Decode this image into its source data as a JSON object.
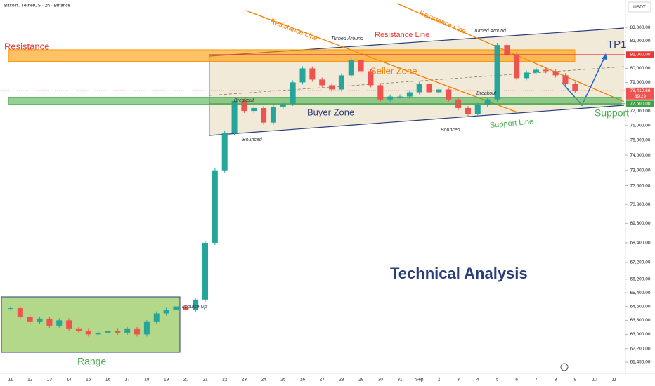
{
  "chart_data": {
    "type": "candlestick",
    "title": "Bitcoin / TetherUS · 2h · Binance",
    "currency": "USDT",
    "log_scale": true,
    "ylim": [
      60830,
      85070
    ],
    "yticks": [
      {
        "value": 83000,
        "label": "83,000.00"
      },
      {
        "value": 82000,
        "label": "82,000.00"
      },
      {
        "value": 80000,
        "label": "80,000.00"
      },
      {
        "value": 79000,
        "label": "79,000.00"
      },
      {
        "value": 77000,
        "label": "77,000.00"
      },
      {
        "value": 76000,
        "label": "76,000.00"
      },
      {
        "value": 75000,
        "label": "75,000.00"
      },
      {
        "value": 74000,
        "label": "74,000.00"
      },
      {
        "value": 73000,
        "label": "73,000.00"
      },
      {
        "value": 72000,
        "label": "72,000.00"
      },
      {
        "value": 70800,
        "label": "70,800.00"
      },
      {
        "value": 69600,
        "label": "69,600.00"
      },
      {
        "value": 68400,
        "label": "68,400.00"
      },
      {
        "value": 67200,
        "label": "67,200.00"
      },
      {
        "value": 66200,
        "label": "66,200.00"
      },
      {
        "value": 65400,
        "label": "65,400.00"
      },
      {
        "value": 64600,
        "label": "64,600.00"
      },
      {
        "value": 63800,
        "label": "63,800.00"
      },
      {
        "value": 63000,
        "label": "63,000.00"
      },
      {
        "value": 62200,
        "label": "62,200.00"
      },
      {
        "value": 61450,
        "label": "61,450.00"
      }
    ],
    "price_labels": [
      {
        "value": 81000,
        "label": "81,000.00",
        "color": "#e53935"
      },
      {
        "value": 78410.66,
        "label": "78,410.66",
        "color": "#ef5350"
      },
      {
        "value": 77500,
        "label": "77,500.00",
        "color": "#43a047"
      }
    ],
    "countdown": "39:29",
    "categories": [
      "11",
      null,
      "12",
      null,
      "13",
      null,
      "14",
      null,
      "15",
      null,
      "16",
      null,
      "17",
      null,
      "18",
      null,
      "19",
      null,
      "20",
      null,
      "21",
      null,
      "22",
      null,
      "23",
      null,
      "24",
      null,
      "25",
      null,
      "26",
      null,
      "27",
      null,
      "28",
      null,
      "29",
      null,
      "30",
      null,
      "31",
      null,
      "Sep",
      null,
      "2",
      null,
      "3",
      null,
      "4",
      null,
      "5",
      null,
      "6",
      null,
      "7",
      null,
      "8",
      null,
      "9",
      null,
      "10",
      null,
      "11"
    ],
    "series": [
      {
        "name": "BTCUSDT",
        "up_color": "#26a69a",
        "down_color": "#ef5350",
        "values": [
          64500,
          64000,
          63700,
          63900,
          63500,
          63800,
          63300,
          63200,
          63000,
          63100,
          63200,
          63100,
          63300,
          63000,
          63700,
          64200,
          64400,
          64600,
          64400,
          65000,
          68400,
          73000,
          75500,
          77700,
          77000,
          77200,
          76200,
          77300,
          77500,
          79000,
          80000,
          79200,
          78800,
          78500,
          79500,
          80600,
          79800,
          78800,
          77800,
          78000,
          78000,
          78300,
          78900,
          78300,
          78500,
          77800,
          77200,
          76800,
          77400,
          77800,
          81700,
          81000,
          79300,
          79700,
          79900,
          79800,
          79500,
          78900,
          78400,
          null,
          null,
          null,
          null
        ]
      }
    ],
    "zones": [
      {
        "from": 80500,
        "to": 81350,
        "color": "#ff9800"
      },
      {
        "from": 77450,
        "to": 77950,
        "color": "#4caf50"
      }
    ],
    "annotations": [
      {
        "text": "Resistance"
      },
      {
        "text": "Resistance Line"
      },
      {
        "text": "Resistance Line"
      },
      {
        "text": "Turned Around"
      },
      {
        "text": "Turned Around"
      },
      {
        "text": "Resistance Line"
      },
      {
        "text": "TP1"
      },
      {
        "text": "Seller Zone"
      },
      {
        "text": "Breakout"
      },
      {
        "text": "Breakout"
      },
      {
        "text": "Buyer Zone"
      },
      {
        "text": "Bounced"
      },
      {
        "text": "Bounced"
      },
      {
        "text": "Support Line"
      },
      {
        "text": "Support"
      },
      {
        "text": "Technical Analysis"
      },
      {
        "text": "Impulse Up"
      },
      {
        "text": "Range"
      }
    ]
  }
}
